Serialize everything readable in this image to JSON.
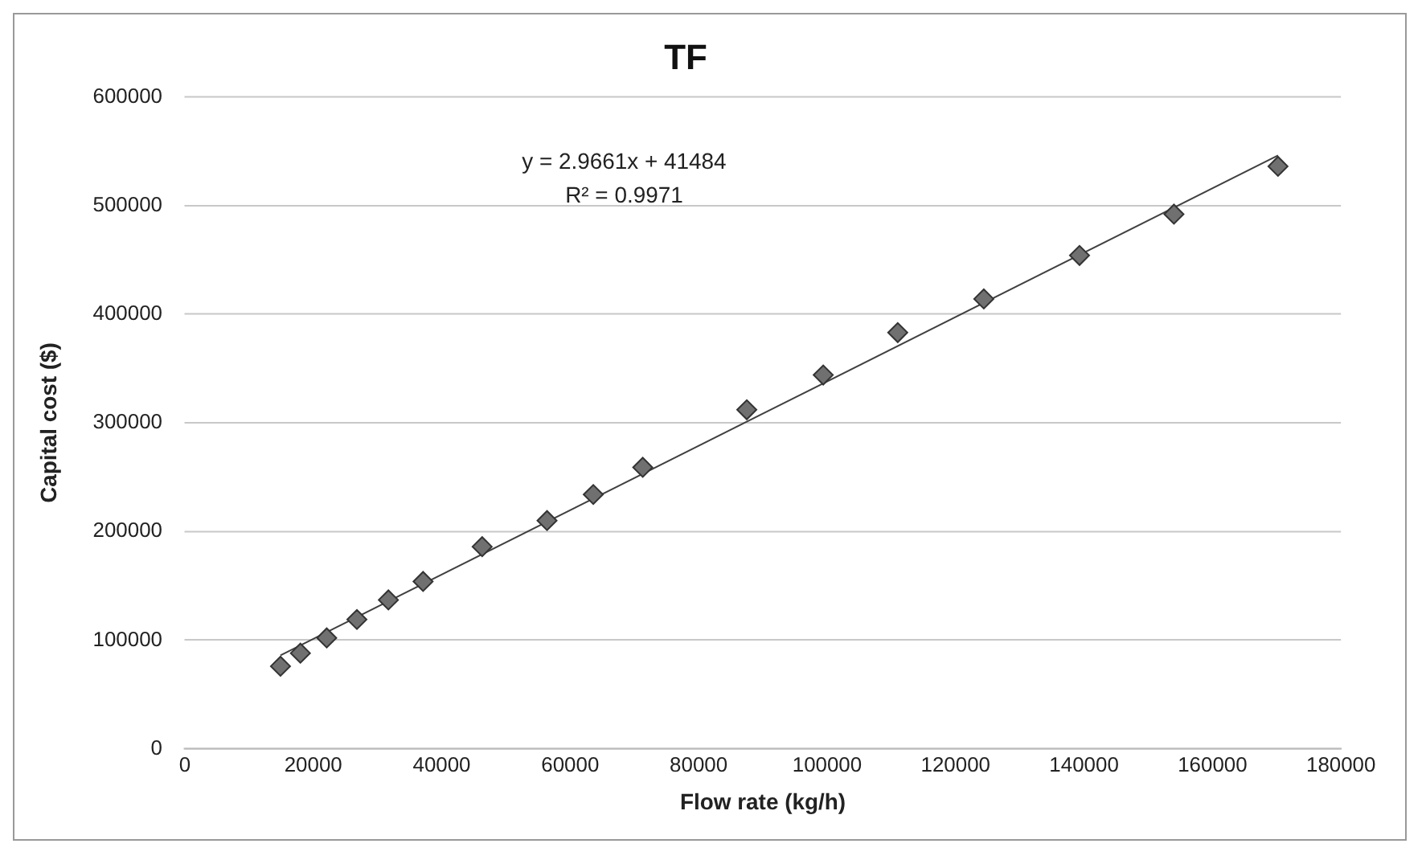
{
  "chart_data": {
    "type": "scatter",
    "title": "TF",
    "xlabel": "Flow rate (kg/h)",
    "ylabel": "Capital cost ($)",
    "series": [
      {
        "color": "#707070",
        "marker": "diamond",
        "x": [
          14900,
          18000,
          22100,
          26800,
          31700,
          37100,
          46300,
          56400,
          63600,
          71300,
          87500,
          99400,
          111000,
          124400,
          139300,
          154000,
          170200
        ],
        "values": [
          76000,
          88000,
          102000,
          119000,
          137000,
          154000,
          186000,
          210000,
          234000,
          259000,
          312000,
          344000,
          383000,
          414000,
          454000,
          492000,
          536000
        ]
      },
      {
        "type": "line",
        "color": "#404040",
        "marker": "none",
        "line_style": "solid",
        "x": [
          14900,
          170200
        ],
        "values": [
          86000,
          546000
        ]
      }
    ],
    "xlim": [
      0,
      180000
    ],
    "xticks": [
      0,
      20000,
      40000,
      60000,
      80000,
      100000,
      120000,
      140000,
      160000,
      180000
    ],
    "ylim": [
      0,
      600000
    ],
    "yticks": [
      0,
      100000,
      200000,
      300000,
      400000,
      500000,
      600000
    ],
    "grid": "y",
    "legend": false,
    "annotations": [
      "y = 2.9661x + 41484",
      "R² = 0.9971"
    ]
  }
}
